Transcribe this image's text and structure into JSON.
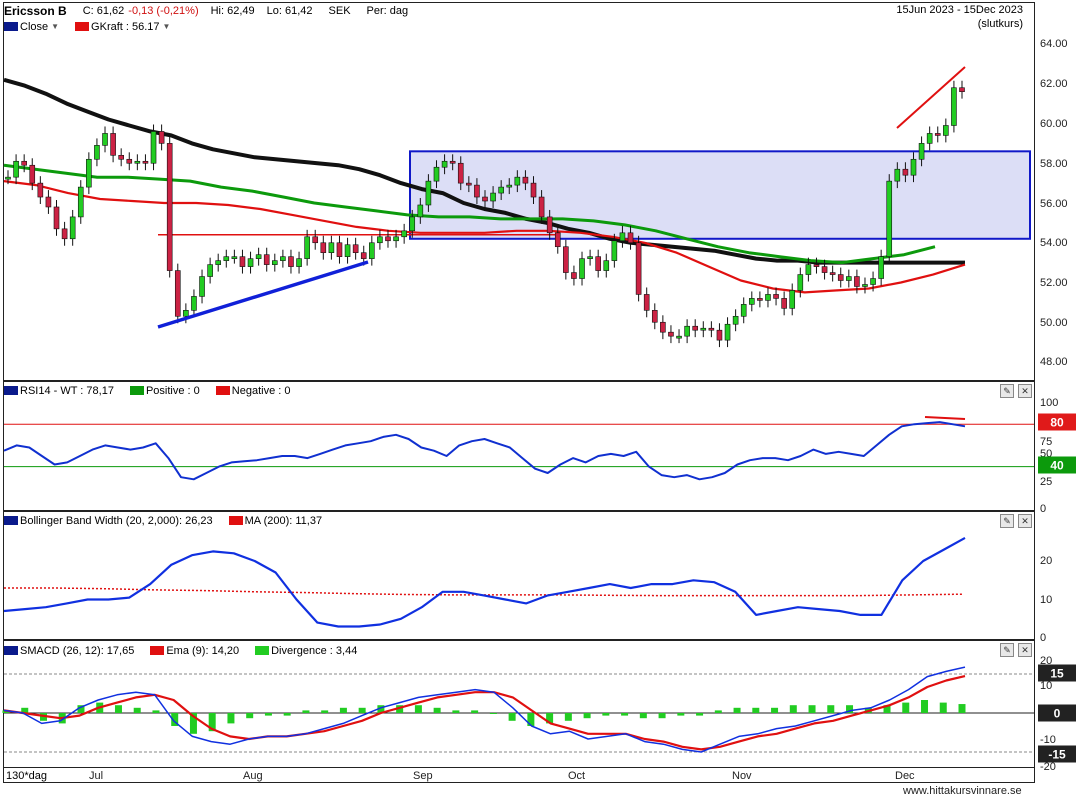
{
  "header": {
    "ticker": "Ericsson B",
    "close": "C: 61,62",
    "change": "-0,13 (-0,21%)",
    "high": "Hi: 62,49",
    "low": "Lo: 61,42",
    "currency": "SEK",
    "period": "Per: dag",
    "date_range": "15Jun 2023 - 15Dec 2023",
    "price_type": "(slutkurs)"
  },
  "legend": {
    "close_label": "Close",
    "gkraft_label": "GKraft : 56.17",
    "rsi_label": "RSI14 - WT : 78,17",
    "positive_label": "Positive : 0",
    "negative_label": "Negative : 0",
    "bbw_label": "Bollinger Band Width (20, 2,000): 26,23",
    "ma_label": "MA (200): 11,37",
    "smacd_label": "SMACD (26, 12): 17,65",
    "ema_label": "Ema (9): 14,20",
    "div_label": "Divergence : 3,44"
  },
  "colors": {
    "navy": "#0a1a8c",
    "red": "#e01010",
    "green": "#0c9a0c",
    "blue_line": "#1030d0",
    "black": "#111111",
    "box_fill": "#d6d8f4",
    "up_candle": "#22cc22",
    "down_candle": "#cc2244",
    "tag_red": "#e01a1a",
    "tag_green": "#0c9a0c",
    "tag_gray": "#222222"
  },
  "tags": {
    "rsi_upper": "80",
    "rsi_lower": "40",
    "macd_upper": "15",
    "macd_zero": "0",
    "macd_lower": "-15"
  },
  "footer": {
    "period_selector": "130*dag",
    "credit": "www.hittakursvinnare.se"
  },
  "chart_data": [
    {
      "type": "candlestick",
      "title": "Ericsson B",
      "ylim": [
        47,
        65
      ],
      "yticks": [
        "64.00",
        "62.00",
        "60.00",
        "58.00",
        "56.00",
        "54.00",
        "52.00",
        "50.00",
        "48.00"
      ],
      "x_ticks": [
        "Jul",
        "Aug",
        "Sep",
        "Oct",
        "Nov",
        "Dec"
      ],
      "ohlc_close": [
        57.3,
        58.1,
        57.9,
        57.0,
        56.3,
        55.8,
        54.7,
        54.2,
        55.3,
        56.8,
        58.2,
        58.9,
        59.5,
        58.4,
        58.2,
        58.0,
        58.1,
        58.0,
        59.6,
        59.0,
        52.6,
        50.3,
        50.6,
        51.3,
        52.3,
        52.9,
        53.1,
        53.3,
        53.3,
        52.8,
        53.2,
        53.4,
        52.9,
        53.1,
        53.3,
        52.8,
        53.2,
        54.3,
        54.0,
        53.5,
        54.0,
        53.3,
        53.9,
        53.5,
        53.2,
        54.0,
        54.3,
        54.1,
        54.3,
        54.6,
        55.3,
        55.9,
        57.1,
        57.8,
        58.1,
        58.0,
        57.0,
        56.9,
        56.3,
        56.1,
        56.5,
        56.8,
        56.9,
        57.3,
        57.0,
        56.3,
        55.3,
        54.5,
        53.8,
        52.5,
        52.2,
        53.2,
        53.3,
        52.6,
        53.1,
        54.1,
        54.5,
        54.0,
        51.4,
        50.6,
        50.0,
        49.5,
        49.3,
        49.3,
        49.8,
        49.6,
        49.7,
        49.6,
        49.1,
        49.9,
        50.3,
        50.9,
        51.2,
        51.1,
        51.4,
        51.2,
        50.7,
        51.6,
        52.4,
        52.9,
        52.8,
        52.5,
        52.4,
        52.1,
        52.3,
        51.8,
        51.9,
        52.2,
        53.3,
        57.1,
        57.7,
        57.4,
        58.2,
        59.0,
        59.5,
        59.4,
        59.9,
        61.8,
        61.6
      ],
      "series": [
        {
          "name": "MA black",
          "values": [
            62.2,
            61.9,
            61.5,
            61.0,
            60.6,
            60.2,
            59.9,
            59.6,
            59.4,
            59.0,
            58.7,
            58.5,
            58.3,
            58.2,
            58.1,
            58.0,
            57.9,
            57.7,
            57.4,
            57.0,
            56.7,
            56.5,
            56.0,
            55.7,
            55.5,
            55.2,
            55.0,
            54.7,
            54.5,
            54.2,
            54.0,
            53.9,
            53.8,
            53.7,
            53.6,
            53.4,
            53.2,
            53.1,
            53.1,
            53.0,
            53.0,
            53.0,
            53.0,
            53.0,
            53.0,
            53.0,
            53.0
          ]
        },
        {
          "name": "MA green",
          "values": [
            57.9,
            57.7,
            57.5,
            57.3,
            57.3,
            57.2,
            57.1,
            56.8,
            56.6,
            56.3,
            56.0,
            55.8,
            55.6,
            55.4,
            55.3,
            55.3,
            55.2,
            55.2,
            55.2,
            55.1,
            54.9,
            54.6,
            54.2,
            53.8,
            53.5,
            53.3,
            53.1,
            53.0,
            53.2,
            53.4,
            53.8
          ]
        },
        {
          "name": "MA red",
          "values": [
            57.1,
            56.9,
            56.5,
            56.2,
            56.1,
            56.0,
            56.0,
            55.9,
            55.7,
            55.4,
            55.1,
            54.8,
            54.6,
            54.5,
            54.5,
            54.5,
            54.6,
            54.6,
            54.5,
            54.3,
            54.0,
            53.5,
            52.8,
            52.1,
            51.7,
            51.5,
            51.6,
            51.7,
            52.0,
            52.4,
            52.9
          ]
        }
      ],
      "annotations": [
        "support trendline Jul–Aug",
        "rectangle range 54.2–58.6 Sep–Dec",
        "resistance line Dec"
      ]
    },
    {
      "type": "line",
      "title": "RSI14 - WT",
      "ylim": [
        0,
        100
      ],
      "yticks": [
        "100",
        "75",
        "50",
        "25",
        "0"
      ],
      "hlines": [
        80,
        40
      ],
      "series": [
        {
          "name": "RSI14 - WT",
          "values": [
            55,
            60,
            58,
            50,
            42,
            44,
            50,
            56,
            60,
            58,
            56,
            58,
            62,
            48,
            30,
            28,
            34,
            40,
            44,
            45,
            46,
            48,
            50,
            50,
            48,
            52,
            56,
            60,
            62,
            64,
            68,
            70,
            66,
            58,
            55,
            50,
            60,
            64,
            66,
            62,
            58,
            48,
            38,
            34,
            42,
            48,
            44,
            50,
            52,
            50,
            54,
            40,
            32,
            30,
            32,
            28,
            30,
            34,
            42,
            46,
            48,
            48,
            46,
            50,
            56,
            52,
            54,
            52,
            50,
            60,
            70,
            78,
            80,
            81,
            82,
            80,
            78
          ]
        }
      ]
    },
    {
      "type": "line",
      "title": "Bollinger Band Width (20, 2,000)",
      "ylim": [
        0,
        30
      ],
      "yticks": [
        "20",
        "10",
        "0"
      ],
      "series": [
        {
          "name": "Bollinger Band Width (20, 2,000)",
          "values": [
            7,
            7.5,
            8,
            9,
            10,
            10,
            10.5,
            14,
            19,
            21.5,
            22.5,
            22,
            20,
            17,
            10,
            4,
            3,
            3,
            3.5,
            5,
            8,
            12,
            12,
            11,
            10,
            9,
            11,
            12,
            13,
            14,
            13,
            14,
            14,
            15,
            14.5,
            12,
            6,
            7,
            8,
            7.5,
            7,
            6,
            6,
            15,
            20,
            23,
            26
          ]
        },
        {
          "name": "MA (200)",
          "values": [
            13,
            13,
            12.8,
            12.5,
            12.3,
            12,
            11.8,
            11.5,
            11.3,
            11.2,
            11.2,
            11.2,
            11.1,
            11,
            11,
            11,
            11,
            11,
            11.2,
            11.37
          ]
        }
      ]
    },
    {
      "type": "bar",
      "title": "SMACD (26, 12)",
      "ylim": [
        -20,
        20
      ],
      "yticks": [
        "20",
        "10",
        "0",
        "-10",
        "-20"
      ],
      "hlines": [
        15,
        0,
        -15
      ],
      "series": [
        {
          "name": "SMACD (26, 12)",
          "values": [
            1,
            0,
            -4,
            -3,
            2,
            5,
            7,
            8,
            7,
            -3,
            -9,
            -11,
            -12,
            -10,
            -9,
            -9,
            -8,
            -6,
            -4,
            -1,
            2,
            4,
            6,
            7,
            8,
            9,
            8,
            2,
            -5,
            -8,
            -7,
            -10,
            -9,
            -8,
            -11,
            -12,
            -14,
            -15,
            -12,
            -9,
            -8,
            -6,
            -5,
            -3,
            -1,
            1,
            2,
            5,
            9,
            14,
            16,
            17.65
          ]
        },
        {
          "name": "Ema (9)",
          "values": [
            1,
            0,
            -1,
            -2,
            -1,
            2,
            4,
            6,
            7,
            5,
            -1,
            -6,
            -9,
            -10,
            -9,
            -9,
            -8,
            -7,
            -5,
            -3,
            0,
            2,
            4,
            6,
            7,
            8,
            8,
            6,
            1,
            -4,
            -6,
            -8,
            -8,
            -8,
            -10,
            -11,
            -13,
            -14,
            -13,
            -11,
            -9,
            -8,
            -6,
            -4,
            -3,
            -1,
            1,
            3,
            6,
            10,
            12.5,
            14.2
          ]
        },
        {
          "name": "Divergence",
          "values": [
            1,
            2,
            -3,
            -4,
            3,
            4,
            3,
            2,
            1,
            -5,
            -8,
            -7,
            -4,
            -2,
            -1,
            -1,
            1,
            1,
            2,
            2,
            3,
            3,
            3,
            2,
            1,
            1,
            0,
            -3,
            -5,
            -4,
            -3,
            -2,
            -1,
            -1,
            -2,
            -2,
            -1,
            -1,
            1,
            2,
            2,
            2,
            3,
            3,
            3,
            3,
            2,
            3,
            4,
            5,
            4,
            3.44
          ]
        }
      ]
    }
  ]
}
